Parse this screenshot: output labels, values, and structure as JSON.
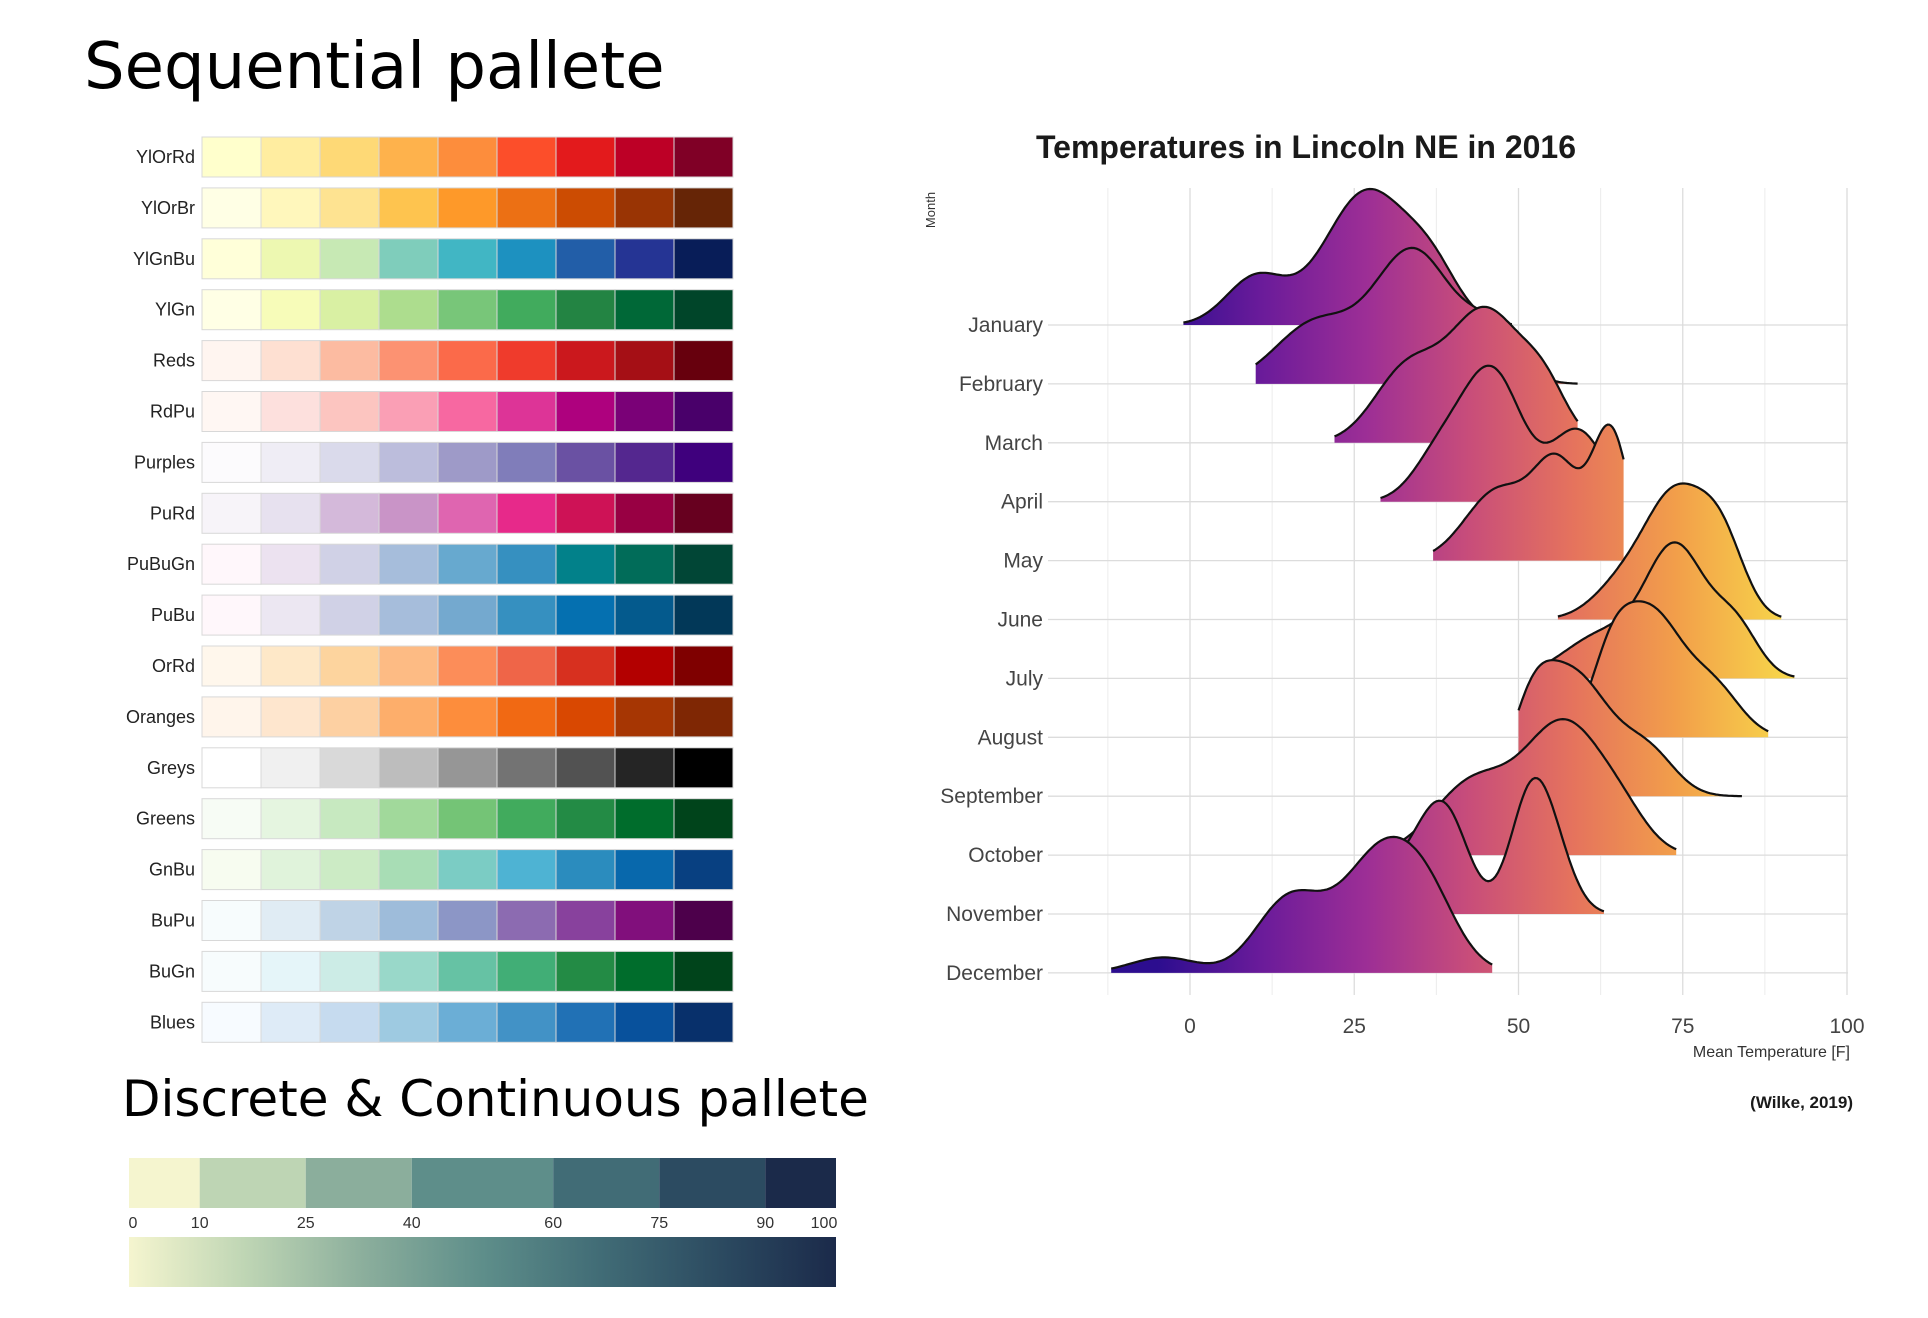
{
  "headings": {
    "sequential": "Sequential pallete",
    "discrete": "Discrete & Continuous pallete"
  },
  "palettes": [
    {
      "name": "YlOrRd",
      "colors": [
        "#ffffcc",
        "#ffeda0",
        "#fed976",
        "#feb24c",
        "#fd8d3c",
        "#fc4e2a",
        "#e31a1c",
        "#bd0026",
        "#800026"
      ]
    },
    {
      "name": "YlOrBr",
      "colors": [
        "#ffffe5",
        "#fff7bc",
        "#fee391",
        "#fec44f",
        "#fe9929",
        "#ec7014",
        "#cc4c02",
        "#993404",
        "#662506"
      ]
    },
    {
      "name": "YlGnBu",
      "colors": [
        "#ffffd9",
        "#edf8b1",
        "#c7e9b4",
        "#7fcdbb",
        "#41b6c4",
        "#1d91c0",
        "#225ea8",
        "#253494",
        "#081d58"
      ]
    },
    {
      "name": "YlGn",
      "colors": [
        "#ffffe5",
        "#f7fcb9",
        "#d9f0a3",
        "#addd8e",
        "#78c679",
        "#41ab5d",
        "#238443",
        "#006837",
        "#004529"
      ]
    },
    {
      "name": "Reds",
      "colors": [
        "#fff5f0",
        "#fee0d2",
        "#fcbba1",
        "#fc9272",
        "#fb6a4a",
        "#ef3b2c",
        "#cb181d",
        "#a50f15",
        "#67000d"
      ]
    },
    {
      "name": "RdPu",
      "colors": [
        "#fff7f3",
        "#fde0dd",
        "#fcc5c0",
        "#fa9fb5",
        "#f768a1",
        "#dd3497",
        "#ae017e",
        "#7a0177",
        "#49006a"
      ]
    },
    {
      "name": "Purples",
      "colors": [
        "#fcfbfd",
        "#efedf5",
        "#dadaeb",
        "#bcbddc",
        "#9e9ac8",
        "#807dba",
        "#6a51a3",
        "#54278f",
        "#3f007d"
      ]
    },
    {
      "name": "PuRd",
      "colors": [
        "#f7f4f9",
        "#e7e1ef",
        "#d4b9da",
        "#c994c7",
        "#df65b0",
        "#e7298a",
        "#ce1256",
        "#980043",
        "#67001f"
      ]
    },
    {
      "name": "PuBuGn",
      "colors": [
        "#fff7fb",
        "#ece2f0",
        "#d0d1e6",
        "#a6bddb",
        "#67a9cf",
        "#3690c0",
        "#02818a",
        "#016c59",
        "#014636"
      ]
    },
    {
      "name": "PuBu",
      "colors": [
        "#fff7fb",
        "#ece7f2",
        "#d0d1e6",
        "#a6bddb",
        "#74a9cf",
        "#3690c0",
        "#0570b0",
        "#045a8d",
        "#023858"
      ]
    },
    {
      "name": "OrRd",
      "colors": [
        "#fff7ec",
        "#fee8c8",
        "#fdd49e",
        "#fdbb84",
        "#fc8d59",
        "#ef6548",
        "#d7301f",
        "#b30000",
        "#7f0000"
      ]
    },
    {
      "name": "Oranges",
      "colors": [
        "#fff5eb",
        "#fee6ce",
        "#fdd0a2",
        "#fdae6b",
        "#fd8d3c",
        "#f16913",
        "#d94801",
        "#a63603",
        "#7f2704"
      ]
    },
    {
      "name": "Greys",
      "colors": [
        "#ffffff",
        "#f0f0f0",
        "#d9d9d9",
        "#bdbdbd",
        "#969696",
        "#737373",
        "#525252",
        "#252525",
        "#000000"
      ]
    },
    {
      "name": "Greens",
      "colors": [
        "#f7fcf5",
        "#e5f5e0",
        "#c7e9c0",
        "#a1d99b",
        "#74c476",
        "#41ab5d",
        "#238b45",
        "#006d2c",
        "#00441b"
      ]
    },
    {
      "name": "GnBu",
      "colors": [
        "#f7fcf0",
        "#e0f3db",
        "#ccebc5",
        "#a8ddb5",
        "#7bccc4",
        "#4eb3d3",
        "#2b8cbe",
        "#0868ac",
        "#084081"
      ]
    },
    {
      "name": "BuPu",
      "colors": [
        "#f7fcfd",
        "#e0ecf4",
        "#bfd3e6",
        "#9ebcda",
        "#8c96c6",
        "#8c6bb1",
        "#88419d",
        "#810f7c",
        "#4d004b"
      ]
    },
    {
      "name": "BuGn",
      "colors": [
        "#f7fcfd",
        "#e5f5f9",
        "#ccece6",
        "#99d8c9",
        "#66c2a4",
        "#41ae76",
        "#238b45",
        "#006d2c",
        "#00441b"
      ]
    },
    {
      "name": "Blues",
      "colors": [
        "#f7fbff",
        "#deebf7",
        "#c6dbef",
        "#9ecae1",
        "#6baed6",
        "#4292c6",
        "#2171b5",
        "#08519c",
        "#08306b"
      ]
    }
  ],
  "discrete_scale": {
    "breaks": [
      0,
      10,
      25,
      40,
      60,
      75,
      90,
      100
    ],
    "tick_labels": [
      "0",
      "10",
      "25",
      "40",
      "60",
      "75",
      "90",
      "100"
    ],
    "colors": [
      "#f5f5cf",
      "#bed5b4",
      "#8bae9c",
      "#5e8e8a",
      "#416c76",
      "#2c4b61",
      "#1b2a4a"
    ],
    "gradient": [
      "#f5f5cf",
      "#bed5b4",
      "#8bae9c",
      "#5e8e8a",
      "#416c76",
      "#2c4b61",
      "#1b2a4a"
    ]
  },
  "chart_data": {
    "type": "ridgeline",
    "title": "Temperatures in Lincoln NE in 2016",
    "ylabel": "Month",
    "xlabel": "Mean Temperature [F]",
    "xlim": [
      -15,
      100
    ],
    "x_ticks": [
      0,
      25,
      50,
      75,
      100
    ],
    "x_tick_labels": [
      "0",
      "25",
      "50",
      "75",
      "100"
    ],
    "categories": [
      "January",
      "February",
      "March",
      "April",
      "May",
      "June",
      "July",
      "August",
      "September",
      "October",
      "November",
      "December"
    ],
    "caption": "(Wilke, 2019)",
    "colormap": "plasma",
    "colormap_stops": [
      "#2c0d8f",
      "#6a1b9a",
      "#9c2e96",
      "#c84d7a",
      "#e5735d",
      "#f29f4a",
      "#f7d34a"
    ],
    "series": [
      {
        "name": "January",
        "range": [
          -1,
          49
        ],
        "peaks": [
          [
            10,
            0.35,
            4.5
          ],
          [
            27,
            1.0,
            6.5
          ],
          [
            37,
            0.3,
            4
          ]
        ]
      },
      {
        "name": "February",
        "range": [
          10,
          59
        ],
        "peaks": [
          [
            19,
            0.45,
            6
          ],
          [
            34,
            1.0,
            6
          ],
          [
            46,
            0.35,
            4
          ]
        ]
      },
      {
        "name": "March",
        "range": [
          22,
          59
        ],
        "peaks": [
          [
            33,
            0.55,
            5
          ],
          [
            45,
            1.0,
            5.5
          ],
          [
            54,
            0.35,
            3.5
          ]
        ]
      },
      {
        "name": "April",
        "range": [
          29,
          64
        ],
        "peaks": [
          [
            38,
            0.35,
            4
          ],
          [
            46,
            1.0,
            4.5
          ],
          [
            59,
            0.55,
            4
          ]
        ]
      },
      {
        "name": "May",
        "range": [
          37,
          66
        ],
        "peaks": [
          [
            47,
            0.55,
            5
          ],
          [
            56,
            0.7,
            3.5
          ],
          [
            64,
            1.0,
            2.8
          ]
        ]
      },
      {
        "name": "June",
        "range": [
          56,
          90
        ],
        "peaks": [
          [
            66,
            0.3,
            4.5
          ],
          [
            74,
            1.0,
            4.5
          ],
          [
            81,
            0.6,
            3.5
          ]
        ]
      },
      {
        "name": "July",
        "range": [
          53,
          92
        ],
        "peaks": [
          [
            63,
            0.35,
            6
          ],
          [
            74,
            1.0,
            4.5
          ],
          [
            83,
            0.4,
            3.5
          ]
        ]
      },
      {
        "name": "August",
        "range": [
          57,
          88
        ],
        "peaks": [
          [
            64,
            0.4,
            3
          ],
          [
            70,
            1.0,
            5
          ],
          [
            80,
            0.35,
            4
          ]
        ]
      },
      {
        "name": "September",
        "range": [
          50,
          84
        ],
        "peaks": [
          [
            52,
            0.35,
            3
          ],
          [
            58,
            1.0,
            6
          ],
          [
            70,
            0.3,
            4
          ]
        ]
      },
      {
        "name": "October",
        "range": [
          29,
          74
        ],
        "peaks": [
          [
            43,
            0.55,
            6
          ],
          [
            57,
            1.0,
            6
          ],
          [
            66,
            0.2,
            4
          ]
        ]
      },
      {
        "name": "November",
        "range": [
          18,
          63
        ],
        "peaks": [
          [
            34,
            0.45,
            5
          ],
          [
            39,
            0.65,
            3.5
          ],
          [
            52,
            1.0,
            3.2
          ],
          [
            56,
            0.3,
            3
          ]
        ]
      },
      {
        "name": "December",
        "range": [
          -12,
          46
        ],
        "peaks": [
          [
            -4,
            0.12,
            5
          ],
          [
            15,
            0.55,
            5
          ],
          [
            30,
            1.0,
            6.5
          ],
          [
            37,
            0.2,
            4
          ]
        ]
      }
    ]
  }
}
